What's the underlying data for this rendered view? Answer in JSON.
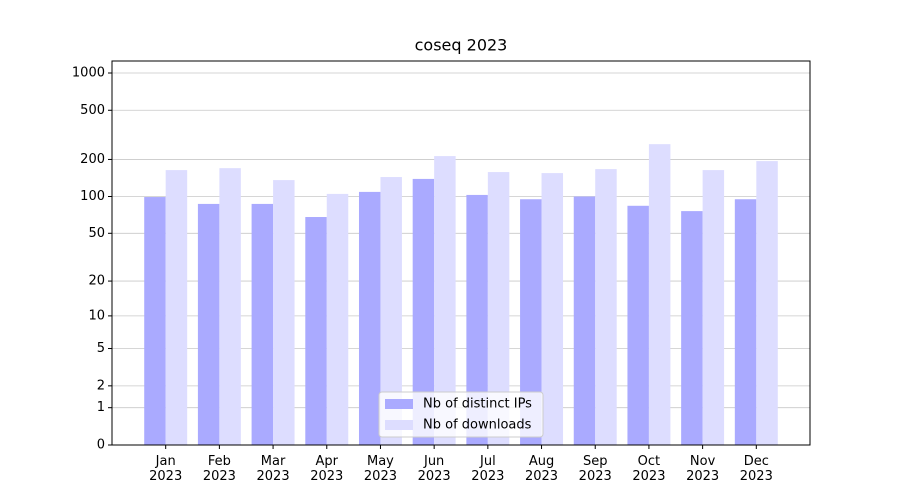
{
  "chart_data": {
    "type": "bar",
    "title": "coseq 2023",
    "categories": [
      "Jan\n2023",
      "Feb\n2023",
      "Mar\n2023",
      "Apr\n2023",
      "May\n2023",
      "Jun\n2023",
      "Jul\n2023",
      "Aug\n2023",
      "Sep\n2023",
      "Oct\n2023",
      "Nov\n2023",
      "Dec\n2023"
    ],
    "series": [
      {
        "name": "Nb of distinct IPs",
        "color": "#aaaaff",
        "values": [
          99,
          87,
          87,
          68,
          109,
          139,
          103,
          95,
          100,
          84,
          76,
          95
        ]
      },
      {
        "name": "Nb of downloads",
        "color": "#ddddff",
        "values": [
          164,
          170,
          136,
          105,
          144,
          213,
          158,
          155,
          167,
          266,
          164,
          194
        ]
      }
    ],
    "yscale": "log1p",
    "ylim": [
      0,
      1250
    ],
    "yticks": [
      0,
      1,
      2,
      5,
      10,
      20,
      50,
      100,
      200,
      500,
      1000
    ],
    "grid": true,
    "legend": "lower center"
  }
}
